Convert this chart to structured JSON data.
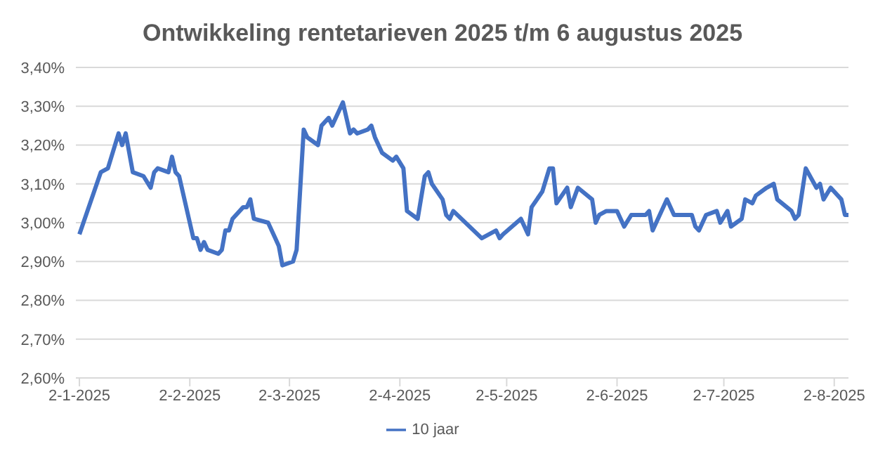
{
  "chart_data": {
    "type": "line",
    "title": "Ontwikkeling rentetarieven 2025 t/m 6 augustus 2025",
    "x": [
      "2025-01-02",
      "2025-01-08",
      "2025-01-10",
      "2025-01-13",
      "2025-01-14",
      "2025-01-15",
      "2025-01-17",
      "2025-01-20",
      "2025-01-22",
      "2025-01-23",
      "2025-01-24",
      "2025-01-27",
      "2025-01-28",
      "2025-01-29",
      "2025-01-30",
      "2025-02-03",
      "2025-02-04",
      "2025-02-05",
      "2025-02-06",
      "2025-02-07",
      "2025-02-10",
      "2025-02-11",
      "2025-02-12",
      "2025-02-13",
      "2025-02-14",
      "2025-02-17",
      "2025-02-18",
      "2025-02-19",
      "2025-02-20",
      "2025-02-24",
      "2025-02-26",
      "2025-02-27",
      "2025-02-28",
      "2025-03-03",
      "2025-03-04",
      "2025-03-06",
      "2025-03-07",
      "2025-03-10",
      "2025-03-11",
      "2025-03-13",
      "2025-03-14",
      "2025-03-17",
      "2025-03-19",
      "2025-03-20",
      "2025-03-21",
      "2025-03-24",
      "2025-03-25",
      "2025-03-26",
      "2025-03-28",
      "2025-03-31",
      "2025-04-01",
      "2025-04-03",
      "2025-04-04",
      "2025-04-07",
      "2025-04-09",
      "2025-04-10",
      "2025-04-11",
      "2025-04-14",
      "2025-04-15",
      "2025-04-16",
      "2025-04-17",
      "2025-04-25",
      "2025-04-29",
      "2025-04-30",
      "2025-05-01",
      "2025-05-06",
      "2025-05-08",
      "2025-05-09",
      "2025-05-12",
      "2025-05-14",
      "2025-05-15",
      "2025-05-16",
      "2025-05-19",
      "2025-05-20",
      "2025-05-22",
      "2025-05-26",
      "2025-05-27",
      "2025-05-28",
      "2025-05-30",
      "2025-06-02",
      "2025-06-04",
      "2025-06-06",
      "2025-06-10",
      "2025-06-11",
      "2025-06-12",
      "2025-06-16",
      "2025-06-18",
      "2025-06-23",
      "2025-06-24",
      "2025-06-25",
      "2025-06-27",
      "2025-06-30",
      "2025-07-01",
      "2025-07-03",
      "2025-07-04",
      "2025-07-07",
      "2025-07-08",
      "2025-07-10",
      "2025-07-11",
      "2025-07-14",
      "2025-07-16",
      "2025-07-17",
      "2025-07-21",
      "2025-07-22",
      "2025-07-23",
      "2025-07-25",
      "2025-07-28",
      "2025-07-29",
      "2025-07-30",
      "2025-08-01",
      "2025-08-04",
      "2025-08-05",
      "2025-08-06"
    ],
    "series": [
      {
        "name": "10 jaar",
        "color": "#4472c4",
        "values": [
          2.97,
          3.13,
          3.14,
          3.23,
          3.2,
          3.23,
          3.13,
          3.12,
          3.09,
          3.13,
          3.14,
          3.13,
          3.17,
          3.13,
          3.12,
          2.96,
          2.96,
          2.93,
          2.95,
          2.93,
          2.92,
          2.93,
          2.98,
          2.98,
          3.01,
          3.04,
          3.04,
          3.06,
          3.01,
          3.0,
          2.96,
          2.94,
          2.89,
          2.9,
          2.93,
          3.24,
          3.22,
          3.2,
          3.25,
          3.27,
          3.25,
          3.31,
          3.23,
          3.24,
          3.23,
          3.24,
          3.25,
          3.22,
          3.18,
          3.16,
          3.17,
          3.14,
          3.03,
          3.01,
          3.12,
          3.13,
          3.1,
          3.06,
          3.02,
          3.01,
          3.03,
          2.96,
          2.98,
          2.96,
          2.97,
          3.01,
          2.97,
          3.04,
          3.08,
          3.14,
          3.14,
          3.05,
          3.09,
          3.04,
          3.09,
          3.06,
          3.0,
          3.02,
          3.03,
          3.03,
          2.99,
          3.02,
          3.02,
          3.03,
          2.98,
          3.06,
          3.02,
          3.02,
          2.99,
          2.98,
          3.02,
          3.03,
          3.0,
          3.03,
          2.99,
          3.01,
          3.06,
          3.05,
          3.07,
          3.09,
          3.1,
          3.06,
          3.03,
          3.01,
          3.02,
          3.14,
          3.09,
          3.1,
          3.06,
          3.09,
          3.06,
          3.02,
          3.02
        ]
      }
    ],
    "xlim": [
      "2025-01-01",
      "2025-08-06"
    ],
    "xticks": [
      {
        "value": "2025-01-02",
        "label": "2-1-2025"
      },
      {
        "value": "2025-02-02",
        "label": "2-2-2025"
      },
      {
        "value": "2025-03-02",
        "label": "2-3-2025"
      },
      {
        "value": "2025-04-02",
        "label": "2-4-2025"
      },
      {
        "value": "2025-05-02",
        "label": "2-5-2025"
      },
      {
        "value": "2025-06-02",
        "label": "2-6-2025"
      },
      {
        "value": "2025-07-02",
        "label": "2-7-2025"
      },
      {
        "value": "2025-08-02",
        "label": "2-8-2025"
      }
    ],
    "ylim": [
      2.6,
      3.4
    ],
    "yticks": [
      {
        "value": 2.6,
        "label": "2,60%"
      },
      {
        "value": 2.7,
        "label": "2,70%"
      },
      {
        "value": 2.8,
        "label": "2,80%"
      },
      {
        "value": 2.9,
        "label": "2,90%"
      },
      {
        "value": 3.0,
        "label": "3,00%"
      },
      {
        "value": 3.1,
        "label": "3,10%"
      },
      {
        "value": 3.2,
        "label": "3,20%"
      },
      {
        "value": 3.3,
        "label": "3,30%"
      },
      {
        "value": 3.4,
        "label": "3,40%"
      }
    ],
    "grid": "y",
    "legend": "bottom",
    "marker": "none",
    "line_style": "solid"
  }
}
